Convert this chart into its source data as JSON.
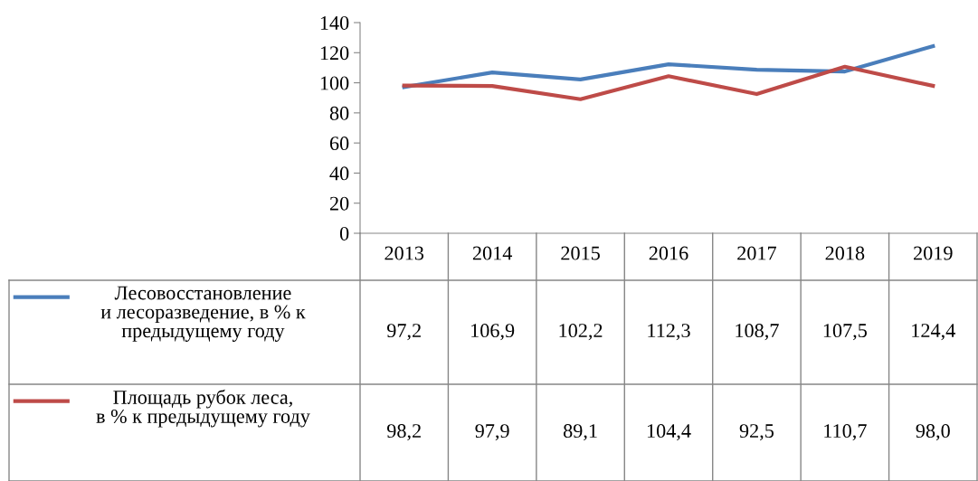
{
  "chart_data": {
    "type": "line",
    "categories": [
      "2013",
      "2014",
      "2015",
      "2016",
      "2017",
      "2018",
      "2019"
    ],
    "ylim": [
      0,
      140
    ],
    "yticks": [
      0,
      20,
      40,
      60,
      80,
      100,
      120,
      140
    ],
    "grid": false,
    "legend": "bottom",
    "marker": "none",
    "line_style": "solid",
    "series": [
      {
        "name": "Лесовосстановление и лесоразведение, в % к предыдущему году",
        "color": "#4a7ebb",
        "values": [
          97.2,
          106.9,
          102.2,
          112.3,
          108.7,
          107.5,
          124.4
        ],
        "value_labels": [
          "97,2",
          "106,9",
          "102,2",
          "112,3",
          "108,7",
          "107,5",
          "124,4"
        ]
      },
      {
        "name": "Площадь рубок леса, в % к предыдущему году",
        "color": "#be4b48",
        "values": [
          98.2,
          97.9,
          89.1,
          104.4,
          92.5,
          110.7,
          98.0
        ],
        "value_labels": [
          "98,2",
          "97,9",
          "89,1",
          "104,4",
          "92,5",
          "110,7",
          "98,0"
        ]
      }
    ]
  }
}
